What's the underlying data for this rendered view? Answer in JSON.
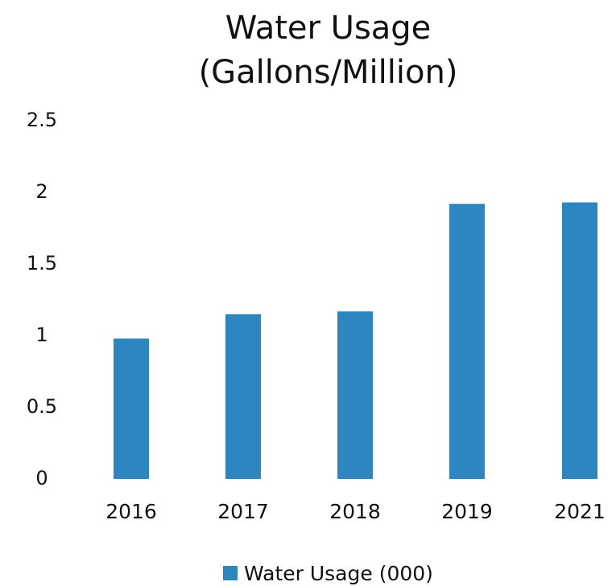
{
  "chart_data": {
    "type": "bar",
    "title_lines": [
      "Water Usage",
      "(Gallons/Million)"
    ],
    "categories": [
      "2016",
      "2017",
      "2018",
      "2019",
      "2021"
    ],
    "series": [
      {
        "name": "Water Usage (000)",
        "values": [
          0.98,
          1.15,
          1.17,
          1.92,
          1.93
        ]
      }
    ],
    "y_ticks": [
      "0",
      "0.5",
      "1",
      "1.5",
      "2",
      "2.5"
    ],
    "ylim": [
      0,
      2.5
    ],
    "xlabel": "",
    "ylabel": "",
    "grid": false,
    "legend_position": "bottom",
    "colors": {
      "bar": "#2e86c1",
      "text": "#111111"
    }
  }
}
